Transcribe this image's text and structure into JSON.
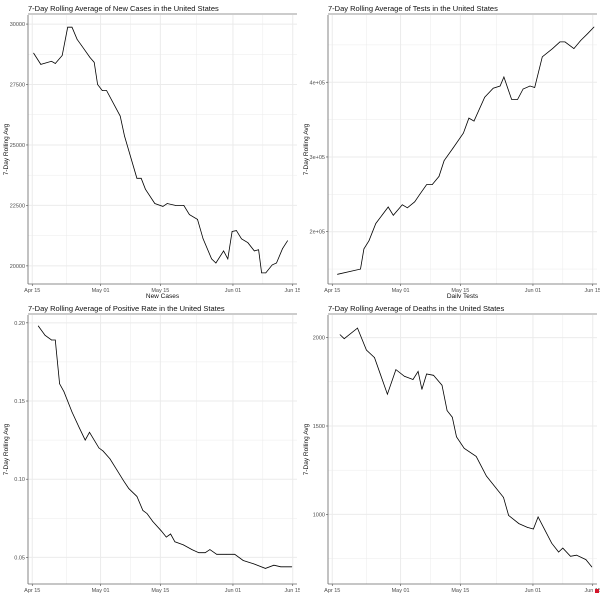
{
  "chart_data": [
    {
      "type": "line",
      "title": "7-Day Rolling Average of New Cases in the United States",
      "xlabel": "New Cases",
      "ylabel": "7-Day Rolling Avg",
      "xlim": [
        -1,
        62
      ],
      "ylim": [
        19250,
        30375
      ],
      "xticks": {
        "values": [
          0,
          16,
          30,
          47,
          61
        ],
        "labels": [
          "Apr 15",
          "May 01",
          "May 15",
          "Jun 01",
          "Jun 15"
        ]
      },
      "yticks": {
        "values": [
          20000,
          22500,
          25000,
          27500,
          30000
        ],
        "labels": [
          "20000",
          "22500",
          "25000",
          "27500",
          "30000"
        ]
      },
      "x": [
        0.3,
        2,
        4.5,
        5.4,
        7,
        8.3,
        9.3,
        10.5,
        11.5,
        13.5,
        14.5,
        15.3,
        16.4,
        17.4,
        20.6,
        21.6,
        24.5,
        25.5,
        26.5,
        28.7,
        30.6,
        31.6,
        33.5,
        35.5,
        36.8,
        38.7,
        40,
        42,
        43,
        44.8,
        45.8,
        46.8,
        47.8,
        49,
        50.5,
        52,
        53,
        53.7,
        54.7,
        56.2,
        57.2,
        58.6,
        59.8
      ],
      "y": [
        28800,
        28330,
        28460,
        28370,
        28700,
        29870,
        29870,
        29370,
        29120,
        28620,
        28420,
        27500,
        27250,
        27250,
        26200,
        25370,
        23620,
        23620,
        23170,
        22580,
        22460,
        22580,
        22500,
        22500,
        22120,
        21920,
        21120,
        20290,
        20120,
        20620,
        20290,
        21420,
        21460,
        21120,
        20960,
        20620,
        20670,
        19710,
        19710,
        20040,
        20120,
        20710,
        21040
      ]
    },
    {
      "type": "line",
      "title": "7-Day Rolling Average of Tests in the United States",
      "xlabel": "Daily Tests",
      "ylabel": "7-Day Rolling Avg",
      "xlim": [
        -1,
        62
      ],
      "ylim": [
        130000,
        490000
      ],
      "xticks": {
        "values": [
          0,
          16,
          30,
          47,
          61
        ],
        "labels": [
          "Apr 15",
          "May 01",
          "May 15",
          "Jun 01",
          "Jun 15"
        ]
      },
      "yticks": {
        "values": [
          200000,
          300000,
          400000
        ],
        "labels": [
          "2e+05",
          "3e+05",
          "4e+05"
        ]
      },
      "x": [
        1.2,
        6.6,
        7.4,
        8.6,
        10.2,
        13.1,
        14.3,
        16.4,
        17.6,
        19.3,
        20.5,
        22.1,
        23.4,
        25,
        26.2,
        28.3,
        30.7,
        32,
        33.2,
        35.7,
        37.7,
        39.3,
        40.2,
        42,
        43.4,
        44.7,
        46.3,
        47.4,
        49.2,
        51.6,
        53.3,
        54.5,
        56.6,
        58.2,
        59.8,
        61.3
      ],
      "y": [
        143000,
        150000,
        177000,
        188000,
        211000,
        233000,
        222000,
        236000,
        232000,
        240000,
        250000,
        263000,
        263000,
        274000,
        295000,
        312000,
        332000,
        352000,
        348000,
        380000,
        392000,
        395000,
        407000,
        377000,
        377000,
        391000,
        395000,
        393000,
        434000,
        445000,
        454000,
        454000,
        445000,
        456000,
        465000,
        474000
      ]
    },
    {
      "type": "line",
      "title": "7-Day Rolling Average of Positive Rate in the United States",
      "xlabel": "",
      "ylabel": "7-Day Rolling Avg",
      "xlim": [
        -1,
        62
      ],
      "ylim": [
        0.033,
        0.205
      ],
      "xticks": {
        "values": [
          0,
          16,
          30,
          47,
          61
        ],
        "labels": [
          "Apr 15",
          "May 01",
          "May 15",
          "Jun 01",
          "Jun 15"
        ]
      },
      "yticks": {
        "values": [
          0.05,
          0.1,
          0.15,
          0.2
        ],
        "labels": [
          "0.05",
          "0.10",
          "0.15",
          "0.20"
        ]
      },
      "x": [
        1.4,
        3,
        4.5,
        5.4,
        5.6,
        6.4,
        7.4,
        9.3,
        11,
        12.4,
        13.4,
        15.6,
        16.6,
        18.2,
        19.8,
        21.4,
        22.6,
        24.5,
        25.9,
        26.9,
        28.2,
        30.2,
        31.4,
        32.4,
        33.4,
        35.4,
        37.4,
        39,
        40.5,
        41.6,
        43.2,
        45.4,
        47.4,
        49.4,
        51.8,
        54.6,
        56.6,
        58.2,
        60.8
      ],
      "y": [
        0.198,
        0.192,
        0.189,
        0.189,
        0.183,
        0.161,
        0.156,
        0.143,
        0.133,
        0.125,
        0.13,
        0.12,
        0.118,
        0.113,
        0.106,
        0.099,
        0.094,
        0.089,
        0.08,
        0.078,
        0.073,
        0.067,
        0.063,
        0.065,
        0.06,
        0.058,
        0.055,
        0.053,
        0.053,
        0.055,
        0.052,
        0.052,
        0.052,
        0.048,
        0.046,
        0.043,
        0.045,
        0.044,
        0.044
      ]
    },
    {
      "type": "line",
      "title": "7-Day Rolling Average of Deaths in the United States",
      "xlabel": "",
      "ylabel": "7-Day Rolling Avg",
      "xlim": [
        -1,
        62
      ],
      "ylim": [
        606,
        2128
      ],
      "xticks": {
        "values": [
          0,
          16,
          30,
          47,
          61
        ],
        "labels": [
          "Apr 15",
          "May 01",
          "May 15",
          "Jun 01",
          "Jun 15"
        ]
      },
      "yticks": {
        "values": [
          1000,
          1500,
          2000
        ],
        "labels": [
          "1000",
          "1500",
          "2000"
        ]
      },
      "x": [
        1.8,
        2.8,
        5.9,
        8,
        9.9,
        12.9,
        14.9,
        16.9,
        18.9,
        20.1,
        21,
        22.1,
        23.7,
        25.7,
        26.9,
        28.1,
        29.1,
        30.9,
        33.7,
        36.1,
        40.1,
        41.3,
        43.7,
        45.7,
        47.1,
        48.2,
        49.8,
        51.4,
        53,
        54,
        55.8,
        57.2,
        59.4,
        60.8
      ],
      "y": [
        2017,
        1994,
        2054,
        1930,
        1887,
        1680,
        1819,
        1781,
        1763,
        1809,
        1707,
        1794,
        1787,
        1731,
        1587,
        1550,
        1439,
        1374,
        1328,
        1217,
        1096,
        994,
        948,
        926,
        917,
        985,
        911,
        837,
        787,
        809,
        763,
        769,
        744,
        702
      ]
    }
  ],
  "colors": {
    "line": "#000000",
    "grid": "#ebebeb",
    "axis": "#555555",
    "marker": "#d4162b"
  }
}
